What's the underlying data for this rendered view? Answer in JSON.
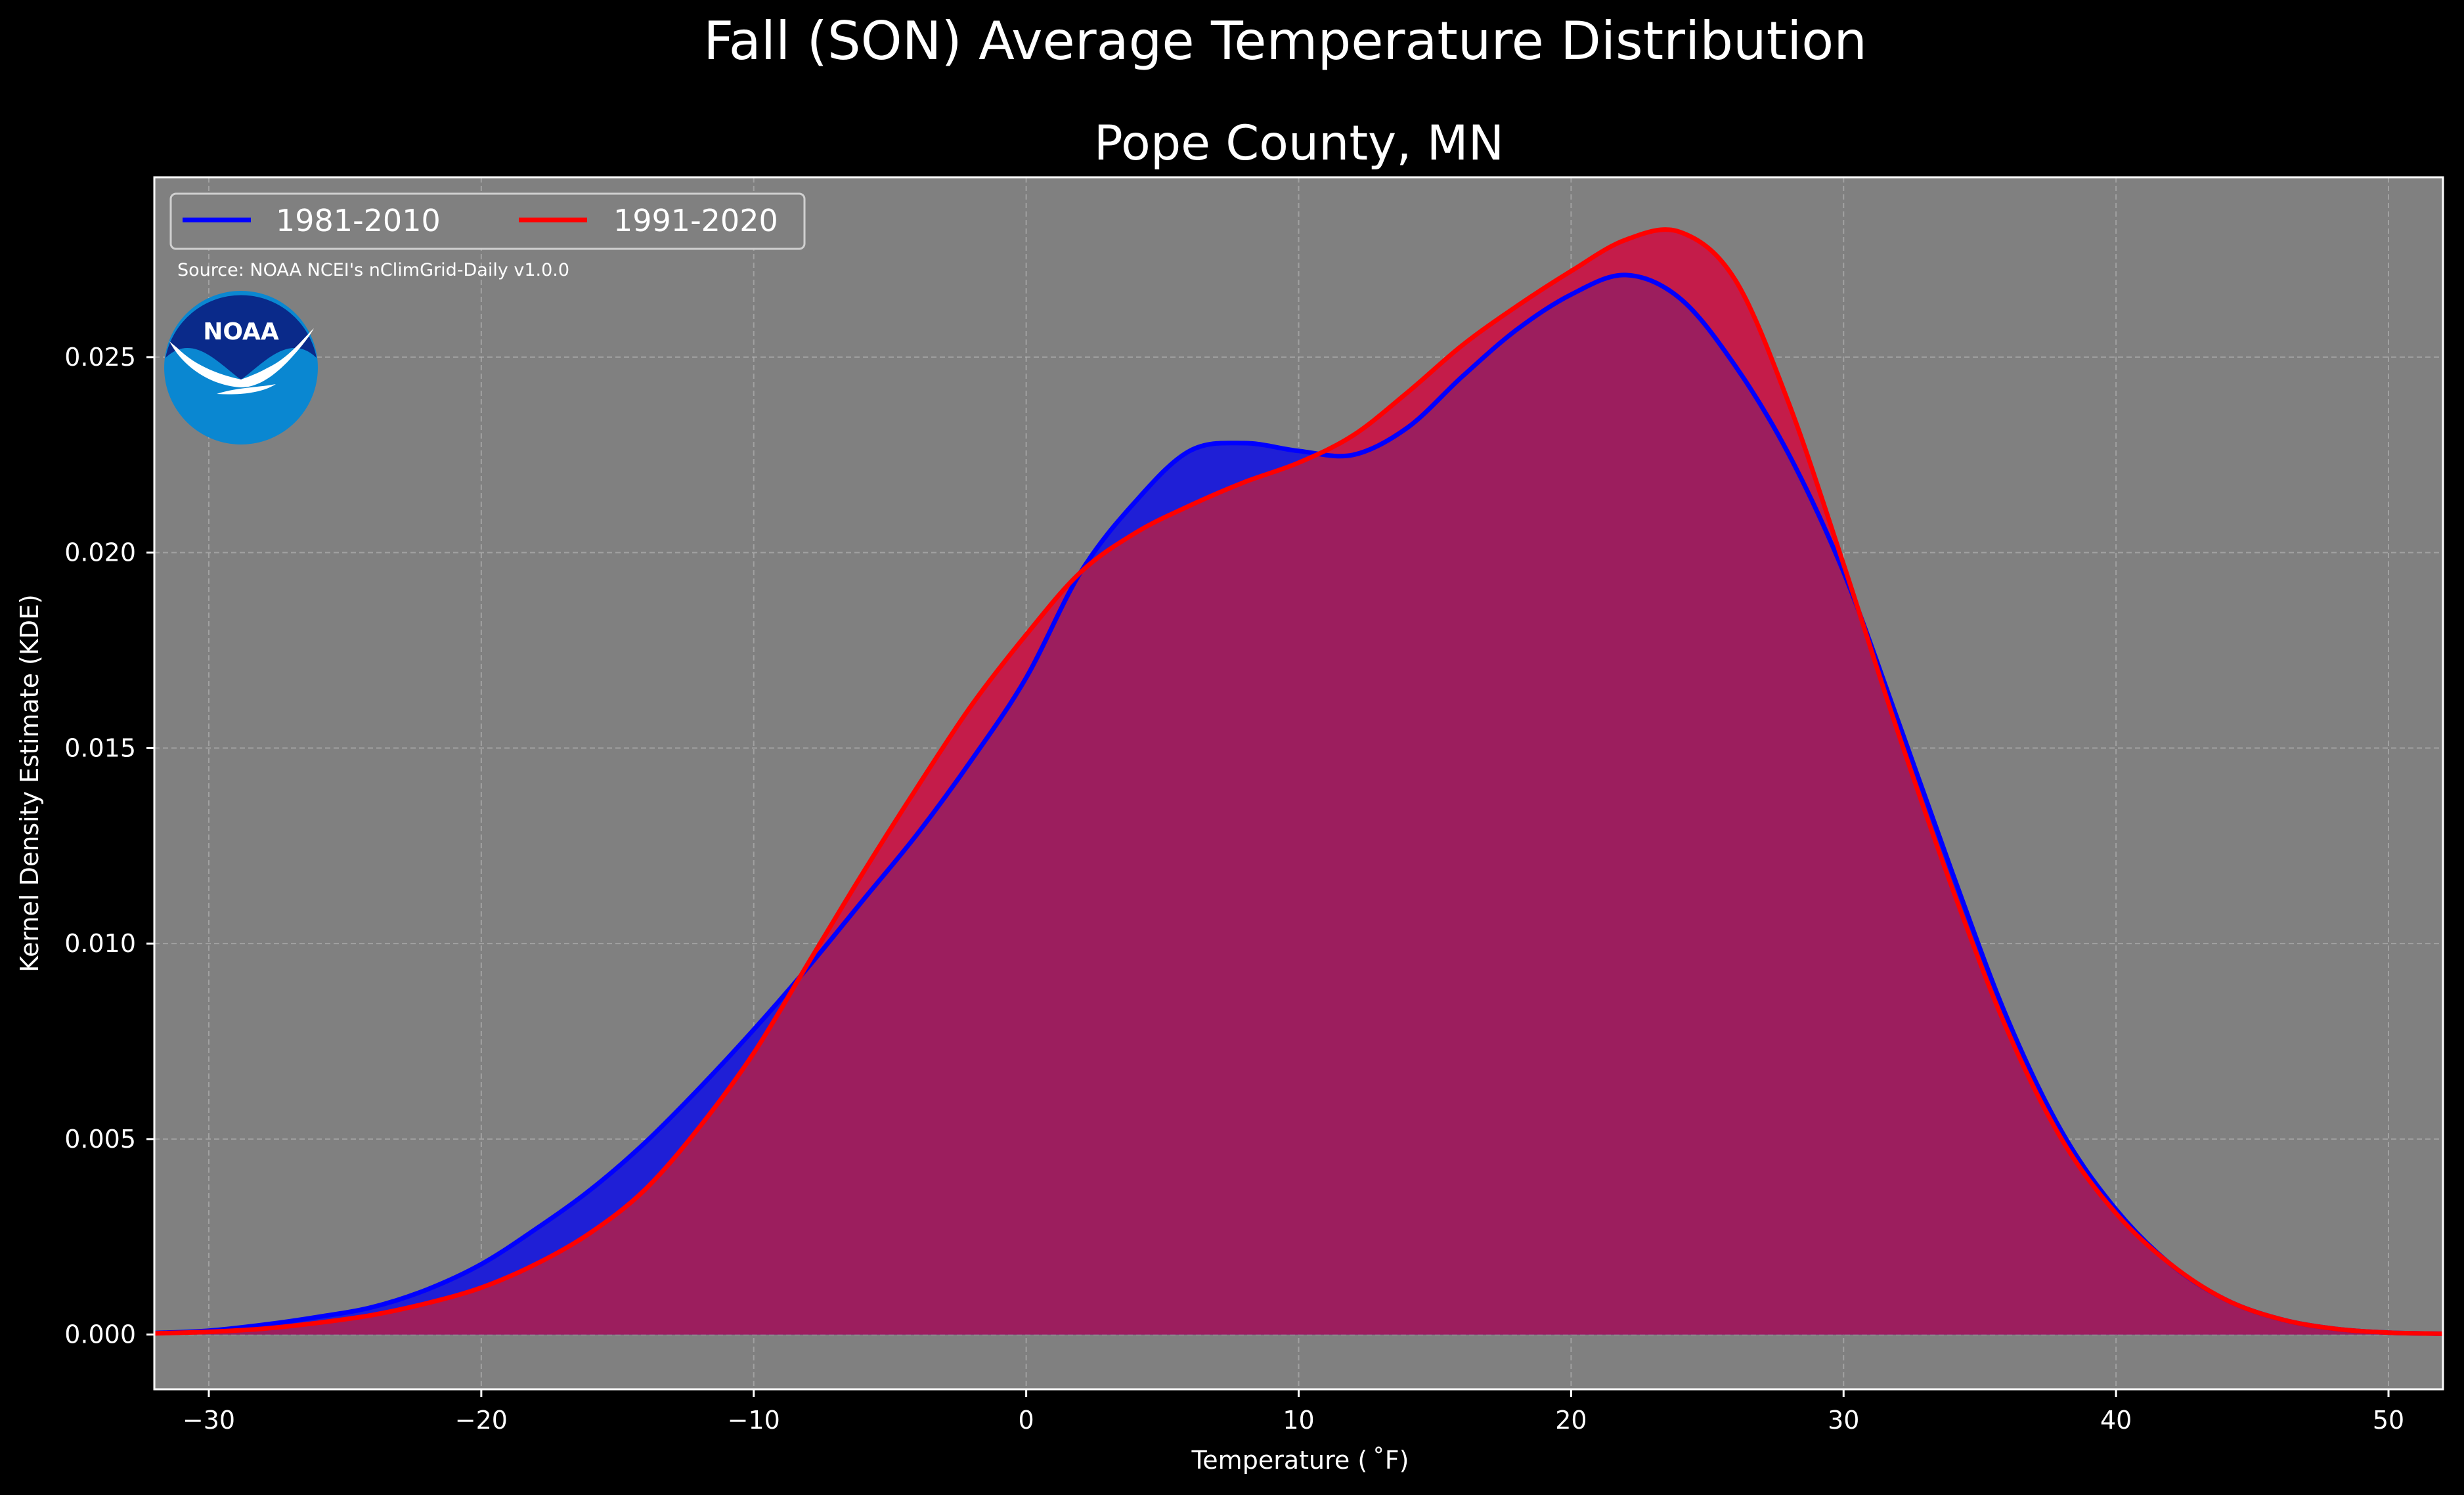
{
  "title": "Fall (SON) Average Temperature Distribution",
  "subtitle": "Pope County, MN",
  "source": "Source: NOAA NCEI's nClimGrid-Daily v1.0.0",
  "logo_text": "NOAA",
  "colors": {
    "background": "#000000",
    "plot_background": "#808080",
    "series_1981": "#0000ff",
    "series_1991": "#ff0000",
    "fill_1981": "#1f1fd6",
    "fill_1991": "#c41c4a",
    "overlap": "#9c1e5e",
    "grid": "#b8b8b8",
    "logo_dark": "#0a2a8a",
    "logo_light": "#0a87d1"
  },
  "chart_data": {
    "type": "area",
    "title": "Fall (SON) Average Temperature Distribution",
    "subtitle": "Pope County, MN",
    "xlabel": "Temperature ( ˚F)",
    "ylabel": "Kernel Density Estimate (KDE)",
    "xlim": [
      -32,
      52
    ],
    "ylim": [
      -0.0014,
      0.0296
    ],
    "x_ticks": [
      -30,
      -20,
      -10,
      0,
      10,
      20,
      30,
      40,
      50
    ],
    "x_tick_labels": [
      "−30",
      "−20",
      "−10",
      "0",
      "10",
      "20",
      "30",
      "40",
      "50"
    ],
    "y_ticks": [
      0.0,
      0.005,
      0.01,
      0.015,
      0.02,
      0.025
    ],
    "y_tick_labels": [
      "0.000",
      "0.005",
      "0.010",
      "0.015",
      "0.020",
      "0.025"
    ],
    "grid": true,
    "legend_position": "upper-left",
    "x": [
      -32,
      -30,
      -28,
      -26,
      -24,
      -22,
      -20,
      -18,
      -16,
      -14,
      -12,
      -10,
      -8,
      -6,
      -4,
      -2,
      0,
      2,
      4,
      6,
      8,
      10,
      12,
      14,
      16,
      18,
      20,
      22,
      24,
      26,
      28,
      30,
      32,
      34,
      36,
      38,
      40,
      42,
      44,
      46,
      48,
      50,
      52
    ],
    "series": [
      {
        "name": "1981-2010",
        "color": "#0000ff",
        "values": [
          4e-05,
          0.0001,
          0.00025,
          0.00045,
          0.0007,
          0.00115,
          0.0018,
          0.0027,
          0.0037,
          0.0049,
          0.0063,
          0.0078,
          0.0094,
          0.0111,
          0.0128,
          0.0147,
          0.0168,
          0.0195,
          0.0213,
          0.0226,
          0.0228,
          0.0226,
          0.0225,
          0.0232,
          0.0245,
          0.0257,
          0.0266,
          0.0271,
          0.0265,
          0.0248,
          0.0225,
          0.0195,
          0.0157,
          0.0118,
          0.0081,
          0.0052,
          0.0032,
          0.0018,
          0.0009,
          0.0004,
          0.00015,
          5e-05,
          2e-05
        ]
      },
      {
        "name": "1991-2020",
        "color": "#ff0000",
        "values": [
          3e-05,
          7e-05,
          0.00015,
          0.0003,
          0.0005,
          0.0008,
          0.0012,
          0.0018,
          0.0026,
          0.0037,
          0.0053,
          0.0072,
          0.0095,
          0.0118,
          0.014,
          0.0161,
          0.0179,
          0.0195,
          0.0205,
          0.0212,
          0.0218,
          0.0223,
          0.023,
          0.0241,
          0.0253,
          0.0263,
          0.0272,
          0.028,
          0.0282,
          0.027,
          0.0238,
          0.0197,
          0.0154,
          0.0114,
          0.0078,
          0.005,
          0.0031,
          0.0018,
          0.0009,
          0.0004,
          0.00015,
          5e-05,
          2e-05
        ]
      }
    ]
  }
}
